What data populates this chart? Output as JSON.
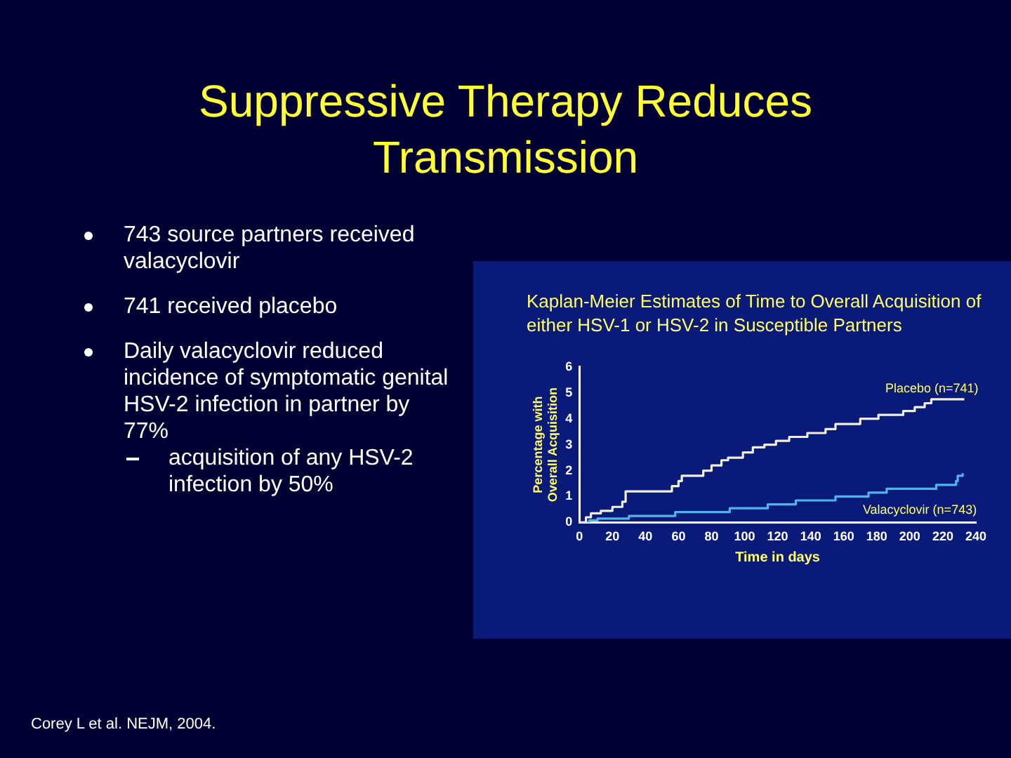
{
  "chart_data": {
    "type": "step",
    "title": "Suppressive Therapy Reduces Transmission",
    "subtitle": "Kaplan-Meier Estimates of Time to Overall Acquisition of either HSV-1 or HSV-2 in Susceptible Partners",
    "xlabel": "Time in days",
    "ylabel": "Percentage with Overall Acquisition",
    "annotations": [
      "743 source partners received valacyclovir",
      "741 received placebo",
      "Daily valacyclovir reduced incidence of symptomatic genital HSV-2 infection in partner by 77%",
      "acquisition of any HSV-2 infection by 50%",
      "Corey L et al. NEJM, 2004."
    ],
    "series": [
      {
        "name": "Placebo (n=741)",
        "color": "#f0f0d8",
        "x": [
          0,
          4,
          7,
          13,
          20,
          26,
          28,
          56,
          60,
          62,
          75,
          80,
          86,
          90,
          99,
          105,
          112,
          119,
          127,
          138,
          149,
          155,
          170,
          181,
          196,
          203,
          209,
          213,
          233
        ],
        "values": [
          0,
          0.2,
          0.35,
          0.45,
          0.6,
          0.8,
          1.2,
          1.4,
          1.6,
          1.8,
          2.0,
          2.2,
          2.4,
          2.5,
          2.7,
          2.9,
          3.0,
          3.15,
          3.3,
          3.45,
          3.6,
          3.8,
          4.0,
          4.15,
          4.3,
          4.45,
          4.6,
          4.75,
          4.75
        ]
      },
      {
        "name": "Valacyclovir (n=743)",
        "color": "#4fb4ec",
        "x": [
          0,
          6,
          11,
          30,
          58,
          91,
          114,
          131,
          155,
          175,
          186,
          216,
          228,
          229,
          232
        ],
        "values": [
          0,
          0.08,
          0.15,
          0.25,
          0.4,
          0.55,
          0.7,
          0.85,
          1.0,
          1.15,
          1.3,
          1.45,
          1.6,
          1.8,
          1.9
        ]
      }
    ],
    "xlim": [
      0,
      240
    ],
    "xticks": [
      0,
      20,
      40,
      60,
      80,
      100,
      120,
      140,
      160,
      180,
      200,
      220,
      240
    ],
    "ylim": [
      0,
      6
    ],
    "yticks": [
      0,
      1,
      2,
      3,
      4,
      5,
      6
    ],
    "grid": false,
    "legend": false,
    "marker": "none",
    "line_style": "solid"
  }
}
